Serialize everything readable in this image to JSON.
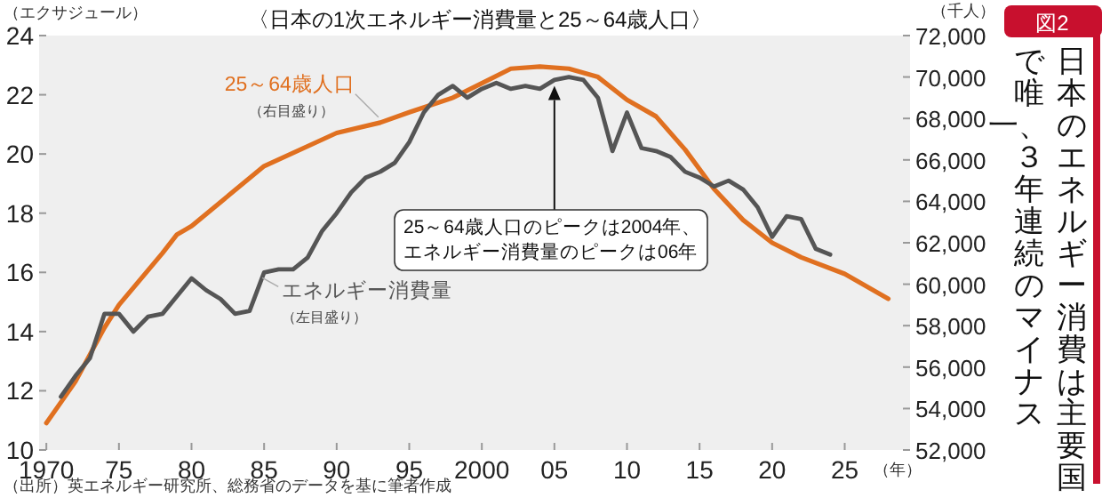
{
  "chart_data": {
    "type": "line",
    "title": "〈日本の1次エネルギー消費量と25～64歳人口〉",
    "subtitle": "日本のエネルギー消費は主要国で唯一、３年連続のマイナス",
    "ylabel": "（エクサジュール）",
    "y2label": "（千人）",
    "xlabel": "（年）",
    "series": [
      {
        "name": "25～64歳人口",
        "color": "#e07020",
        "axis": "y2",
        "x": [
          1970,
          1972,
          1974,
          1975,
          1978,
          1979,
          1980,
          1985,
          1990,
          1993,
          1995,
          1998,
          2000,
          2002,
          2004,
          2006,
          2008,
          2010,
          2012,
          2014,
          2016,
          2018,
          2020,
          2022,
          2025,
          2028
        ],
        "values": [
          53300,
          55300,
          57900,
          59000,
          61500,
          62400,
          62800,
          65700,
          67300,
          67800,
          68300,
          69000,
          69700,
          70400,
          70500,
          70400,
          70000,
          68900,
          68100,
          66500,
          64600,
          63100,
          62000,
          61300,
          60500,
          59300
        ]
      },
      {
        "name": "エネルギー消費量",
        "color": "#555555",
        "axis": "y",
        "x": [
          1971,
          1972,
          1973,
          1974,
          1975,
          1976,
          1977,
          1978,
          1979,
          1980,
          1981,
          1982,
          1983,
          1984,
          1985,
          1986,
          1987,
          1988,
          1989,
          1990,
          1991,
          1992,
          1993,
          1994,
          1995,
          1996,
          1997,
          1998,
          1999,
          2000,
          2001,
          2002,
          2003,
          2004,
          2005,
          2006,
          2007,
          2008,
          2009,
          2010,
          2011,
          2012,
          2013,
          2014,
          2015,
          2016,
          2017,
          2018,
          2019,
          2020,
          2021,
          2022,
          2023,
          2024
        ],
        "values": [
          11.8,
          12.5,
          13.1,
          14.6,
          14.6,
          14.0,
          14.5,
          14.6,
          15.2,
          15.8,
          15.4,
          15.1,
          14.6,
          14.7,
          16.0,
          16.1,
          16.1,
          16.5,
          17.4,
          18.0,
          18.7,
          19.2,
          19.4,
          19.7,
          20.4,
          21.4,
          22.0,
          22.3,
          21.9,
          22.2,
          22.4,
          22.2,
          22.3,
          22.2,
          22.5,
          22.6,
          22.5,
          21.9,
          20.1,
          21.4,
          20.2,
          20.1,
          19.9,
          19.4,
          19.2,
          18.9,
          19.1,
          18.8,
          18.2,
          17.2,
          17.9,
          17.8,
          16.8,
          16.6
        ]
      }
    ],
    "xlim": [
      1969.5,
      2029.5
    ],
    "xticks": [
      1970,
      {
        "value": 1975,
        "label": "75"
      },
      {
        "value": 1980,
        "label": "80"
      },
      {
        "value": 1985,
        "label": "85"
      },
      {
        "value": 1990,
        "label": "90"
      },
      {
        "value": 1995,
        "label": "95"
      },
      2000,
      {
        "value": 2005,
        "label": "05"
      },
      {
        "value": 2010,
        "label": "10"
      },
      {
        "value": 2015,
        "label": "15"
      },
      {
        "value": 2020,
        "label": "20"
      },
      {
        "value": 2025,
        "label": "25"
      }
    ],
    "ylim": [
      10,
      24
    ],
    "yticks": [
      10,
      12,
      14,
      16,
      18,
      20,
      22,
      24
    ],
    "y2lim": [
      52000,
      72000
    ],
    "y2ticks": [
      {
        "value": 52000,
        "label": "52,000"
      },
      {
        "value": 54000,
        "label": "54,000"
      },
      {
        "value": 56000,
        "label": "56,000"
      },
      {
        "value": 58000,
        "label": "58,000"
      },
      {
        "value": 60000,
        "label": "60,000"
      },
      {
        "value": 62000,
        "label": "62,000"
      },
      {
        "value": 64000,
        "label": "64,000"
      },
      {
        "value": 66000,
        "label": "66,000"
      },
      {
        "value": 68000,
        "label": "68,000"
      },
      {
        "value": 70000,
        "label": "70,000"
      },
      {
        "value": 72000,
        "label": "72,000"
      }
    ],
    "grid": false,
    "annotations": [
      "（右目盛り）",
      "（左目盛り）",
      {
        "text": "25～64歳人口のピークは2004年、エネルギー消費量のピークは06年",
        "x": 2005,
        "y": 22.3
      },
      "図2",
      "（出所）英エネルギー研究所、総務省のデータを基に筆者作成"
    ]
  }
}
